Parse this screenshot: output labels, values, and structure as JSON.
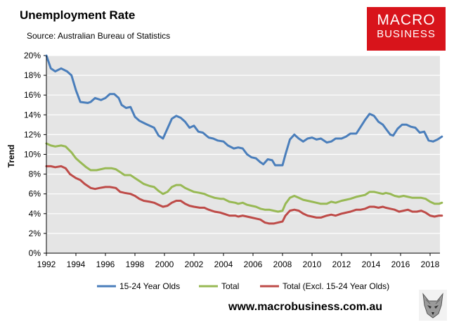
{
  "header": {
    "title": "Unemployment Rate",
    "subtitle": "Source: Australian Bureau of Statistics"
  },
  "logo": {
    "line1": "MACRO",
    "line2": "BUSINESS",
    "color": "#d8141b"
  },
  "footer": {
    "url": "www.macrobusiness.com.au"
  },
  "chart_data": {
    "type": "line",
    "xlabel": "",
    "ylabel": "Trend",
    "xlim": [
      1992,
      2018.5
    ],
    "ylim": [
      0,
      20
    ],
    "x_ticks": [
      "1992",
      "1994",
      "1996",
      "1998",
      "2000",
      "2002",
      "2004",
      "2006",
      "2008",
      "2010",
      "2012",
      "2014",
      "2016",
      "2018"
    ],
    "y_ticks": [
      "0%",
      "2%",
      "4%",
      "6%",
      "8%",
      "10%",
      "12%",
      "14%",
      "16%",
      "18%",
      "20%"
    ],
    "grid": true,
    "plot_background": "#e5e5e5",
    "legend_position": "bottom",
    "series": [
      {
        "name": "15-24 Year Olds",
        "color": "#4a7ebb",
        "points": [
          [
            1992.0,
            20.0
          ],
          [
            1992.3,
            18.7
          ],
          [
            1992.6,
            18.4
          ],
          [
            1993.0,
            18.7
          ],
          [
            1993.4,
            18.4
          ],
          [
            1993.7,
            18.0
          ],
          [
            1994.0,
            16.5
          ],
          [
            1994.3,
            15.3
          ],
          [
            1994.8,
            15.2
          ],
          [
            1995.0,
            15.3
          ],
          [
            1995.3,
            15.7
          ],
          [
            1995.7,
            15.5
          ],
          [
            1996.0,
            15.7
          ],
          [
            1996.3,
            16.1
          ],
          [
            1996.6,
            16.1
          ],
          [
            1996.9,
            15.7
          ],
          [
            1997.1,
            15.0
          ],
          [
            1997.4,
            14.7
          ],
          [
            1997.7,
            14.8
          ],
          [
            1998.0,
            13.8
          ],
          [
            1998.3,
            13.4
          ],
          [
            1998.7,
            13.1
          ],
          [
            1999.0,
            12.9
          ],
          [
            1999.3,
            12.7
          ],
          [
            1999.6,
            11.9
          ],
          [
            1999.9,
            11.6
          ],
          [
            2000.2,
            12.6
          ],
          [
            2000.5,
            13.6
          ],
          [
            2000.8,
            13.9
          ],
          [
            2001.1,
            13.7
          ],
          [
            2001.4,
            13.3
          ],
          [
            2001.7,
            12.7
          ],
          [
            2002.0,
            12.9
          ],
          [
            2002.3,
            12.3
          ],
          [
            2002.6,
            12.2
          ],
          [
            2003.0,
            11.7
          ],
          [
            2003.3,
            11.6
          ],
          [
            2003.6,
            11.4
          ],
          [
            2004.0,
            11.3
          ],
          [
            2004.3,
            10.9
          ],
          [
            2004.7,
            10.6
          ],
          [
            2005.0,
            10.7
          ],
          [
            2005.3,
            10.6
          ],
          [
            2005.6,
            10.0
          ],
          [
            2005.9,
            9.7
          ],
          [
            2006.2,
            9.6
          ],
          [
            2006.5,
            9.2
          ],
          [
            2006.7,
            9.0
          ],
          [
            2007.0,
            9.5
          ],
          [
            2007.3,
            9.4
          ],
          [
            2007.5,
            8.9
          ],
          [
            2007.8,
            8.9
          ],
          [
            2008.0,
            8.9
          ],
          [
            2008.2,
            10.0
          ],
          [
            2008.5,
            11.5
          ],
          [
            2008.8,
            12.0
          ],
          [
            2009.1,
            11.6
          ],
          [
            2009.4,
            11.3
          ],
          [
            2009.7,
            11.6
          ],
          [
            2010.0,
            11.7
          ],
          [
            2010.3,
            11.5
          ],
          [
            2010.6,
            11.6
          ],
          [
            2011.0,
            11.2
          ],
          [
            2011.3,
            11.3
          ],
          [
            2011.6,
            11.6
          ],
          [
            2012.0,
            11.6
          ],
          [
            2012.3,
            11.8
          ],
          [
            2012.6,
            12.1
          ],
          [
            2013.0,
            12.1
          ],
          [
            2013.3,
            12.8
          ],
          [
            2013.6,
            13.5
          ],
          [
            2013.9,
            14.1
          ],
          [
            2014.2,
            13.9
          ],
          [
            2014.5,
            13.3
          ],
          [
            2014.8,
            13.0
          ],
          [
            2015.0,
            12.6
          ],
          [
            2015.3,
            12.0
          ],
          [
            2015.5,
            11.9
          ],
          [
            2015.8,
            12.6
          ],
          [
            2016.1,
            13.0
          ],
          [
            2016.4,
            13.0
          ],
          [
            2016.7,
            12.8
          ],
          [
            2017.0,
            12.7
          ],
          [
            2017.3,
            12.2
          ],
          [
            2017.6,
            12.3
          ],
          [
            2017.9,
            11.4
          ],
          [
            2018.2,
            11.3
          ],
          [
            2018.5,
            11.5
          ],
          [
            2018.8,
            11.8
          ]
        ]
      },
      {
        "name": "Total",
        "color": "#98b954",
        "points": [
          [
            1992.0,
            11.1
          ],
          [
            1992.3,
            10.9
          ],
          [
            1992.6,
            10.8
          ],
          [
            1993.0,
            10.9
          ],
          [
            1993.3,
            10.8
          ],
          [
            1993.7,
            10.2
          ],
          [
            1994.0,
            9.6
          ],
          [
            1994.3,
            9.2
          ],
          [
            1994.7,
            8.7
          ],
          [
            1995.0,
            8.4
          ],
          [
            1995.4,
            8.4
          ],
          [
            1995.7,
            8.5
          ],
          [
            1996.0,
            8.6
          ],
          [
            1996.4,
            8.6
          ],
          [
            1996.7,
            8.5
          ],
          [
            1997.0,
            8.2
          ],
          [
            1997.3,
            7.9
          ],
          [
            1997.7,
            7.9
          ],
          [
            1998.0,
            7.6
          ],
          [
            1998.3,
            7.3
          ],
          [
            1998.6,
            7.0
          ],
          [
            1999.0,
            6.8
          ],
          [
            1999.3,
            6.7
          ],
          [
            1999.6,
            6.3
          ],
          [
            1999.9,
            6.0
          ],
          [
            2000.2,
            6.2
          ],
          [
            2000.5,
            6.7
          ],
          [
            2000.8,
            6.9
          ],
          [
            2001.1,
            6.9
          ],
          [
            2001.4,
            6.6
          ],
          [
            2001.7,
            6.4
          ],
          [
            2002.0,
            6.2
          ],
          [
            2002.4,
            6.1
          ],
          [
            2002.7,
            6.0
          ],
          [
            2003.0,
            5.8
          ],
          [
            2003.4,
            5.6
          ],
          [
            2003.8,
            5.5
          ],
          [
            2004.0,
            5.5
          ],
          [
            2004.4,
            5.2
          ],
          [
            2004.8,
            5.1
          ],
          [
            2005.0,
            5.0
          ],
          [
            2005.3,
            5.1
          ],
          [
            2005.6,
            4.9
          ],
          [
            2005.9,
            4.8
          ],
          [
            2006.2,
            4.7
          ],
          [
            2006.5,
            4.5
          ],
          [
            2006.8,
            4.4
          ],
          [
            2007.1,
            4.4
          ],
          [
            2007.4,
            4.3
          ],
          [
            2007.7,
            4.2
          ],
          [
            2008.0,
            4.3
          ],
          [
            2008.2,
            5.0
          ],
          [
            2008.5,
            5.6
          ],
          [
            2008.8,
            5.8
          ],
          [
            2009.1,
            5.6
          ],
          [
            2009.4,
            5.4
          ],
          [
            2009.7,
            5.3
          ],
          [
            2010.0,
            5.2
          ],
          [
            2010.3,
            5.1
          ],
          [
            2010.6,
            5.0
          ],
          [
            2011.0,
            5.0
          ],
          [
            2011.3,
            5.2
          ],
          [
            2011.6,
            5.1
          ],
          [
            2012.0,
            5.3
          ],
          [
            2012.3,
            5.4
          ],
          [
            2012.6,
            5.5
          ],
          [
            2013.0,
            5.7
          ],
          [
            2013.3,
            5.8
          ],
          [
            2013.6,
            5.9
          ],
          [
            2013.9,
            6.2
          ],
          [
            2014.2,
            6.2
          ],
          [
            2014.5,
            6.1
          ],
          [
            2014.8,
            6.0
          ],
          [
            2015.0,
            6.1
          ],
          [
            2015.3,
            6.0
          ],
          [
            2015.6,
            5.8
          ],
          [
            2015.9,
            5.7
          ],
          [
            2016.2,
            5.8
          ],
          [
            2016.5,
            5.7
          ],
          [
            2016.8,
            5.6
          ],
          [
            2017.1,
            5.6
          ],
          [
            2017.4,
            5.6
          ],
          [
            2017.7,
            5.5
          ],
          [
            2018.0,
            5.2
          ],
          [
            2018.3,
            5.0
          ],
          [
            2018.6,
            5.0
          ],
          [
            2018.8,
            5.1
          ]
        ]
      },
      {
        "name": "Total (Excl. 15-24 Year Olds)",
        "color": "#be4b48",
        "points": [
          [
            1992.0,
            8.8
          ],
          [
            1992.3,
            8.8
          ],
          [
            1992.6,
            8.7
          ],
          [
            1993.0,
            8.8
          ],
          [
            1993.3,
            8.6
          ],
          [
            1993.6,
            8.0
          ],
          [
            1994.0,
            7.6
          ],
          [
            1994.3,
            7.4
          ],
          [
            1994.6,
            7.0
          ],
          [
            1995.0,
            6.6
          ],
          [
            1995.3,
            6.5
          ],
          [
            1995.6,
            6.6
          ],
          [
            1996.0,
            6.7
          ],
          [
            1996.3,
            6.7
          ],
          [
            1996.7,
            6.6
          ],
          [
            1997.0,
            6.2
          ],
          [
            1997.3,
            6.1
          ],
          [
            1997.7,
            6.0
          ],
          [
            1998.0,
            5.8
          ],
          [
            1998.3,
            5.5
          ],
          [
            1998.6,
            5.3
          ],
          [
            1999.0,
            5.2
          ],
          [
            1999.3,
            5.1
          ],
          [
            1999.6,
            4.9
          ],
          [
            1999.9,
            4.7
          ],
          [
            2000.2,
            4.8
          ],
          [
            2000.5,
            5.1
          ],
          [
            2000.8,
            5.3
          ],
          [
            2001.1,
            5.3
          ],
          [
            2001.4,
            5.0
          ],
          [
            2001.7,
            4.8
          ],
          [
            2002.0,
            4.7
          ],
          [
            2002.4,
            4.6
          ],
          [
            2002.7,
            4.6
          ],
          [
            2003.0,
            4.4
          ],
          [
            2003.4,
            4.2
          ],
          [
            2003.8,
            4.1
          ],
          [
            2004.0,
            4.0
          ],
          [
            2004.4,
            3.8
          ],
          [
            2004.8,
            3.8
          ],
          [
            2005.0,
            3.7
          ],
          [
            2005.3,
            3.8
          ],
          [
            2005.6,
            3.7
          ],
          [
            2005.9,
            3.6
          ],
          [
            2006.2,
            3.5
          ],
          [
            2006.5,
            3.4
          ],
          [
            2006.8,
            3.1
          ],
          [
            2007.1,
            3.0
          ],
          [
            2007.4,
            3.0
          ],
          [
            2007.7,
            3.1
          ],
          [
            2008.0,
            3.2
          ],
          [
            2008.2,
            3.8
          ],
          [
            2008.5,
            4.3
          ],
          [
            2008.8,
            4.4
          ],
          [
            2009.1,
            4.3
          ],
          [
            2009.4,
            4.0
          ],
          [
            2009.7,
            3.8
          ],
          [
            2010.0,
            3.7
          ],
          [
            2010.3,
            3.6
          ],
          [
            2010.6,
            3.6
          ],
          [
            2011.0,
            3.8
          ],
          [
            2011.3,
            3.9
          ],
          [
            2011.6,
            3.8
          ],
          [
            2012.0,
            4.0
          ],
          [
            2012.3,
            4.1
          ],
          [
            2012.6,
            4.2
          ],
          [
            2013.0,
            4.4
          ],
          [
            2013.3,
            4.4
          ],
          [
            2013.6,
            4.5
          ],
          [
            2013.9,
            4.7
          ],
          [
            2014.2,
            4.7
          ],
          [
            2014.5,
            4.6
          ],
          [
            2014.8,
            4.7
          ],
          [
            2015.0,
            4.6
          ],
          [
            2015.3,
            4.5
          ],
          [
            2015.6,
            4.4
          ],
          [
            2015.9,
            4.2
          ],
          [
            2016.2,
            4.3
          ],
          [
            2016.5,
            4.4
          ],
          [
            2016.8,
            4.2
          ],
          [
            2017.1,
            4.2
          ],
          [
            2017.4,
            4.3
          ],
          [
            2017.7,
            4.1
          ],
          [
            2018.0,
            3.8
          ],
          [
            2018.3,
            3.7
          ],
          [
            2018.6,
            3.8
          ],
          [
            2018.8,
            3.8
          ]
        ]
      }
    ]
  }
}
